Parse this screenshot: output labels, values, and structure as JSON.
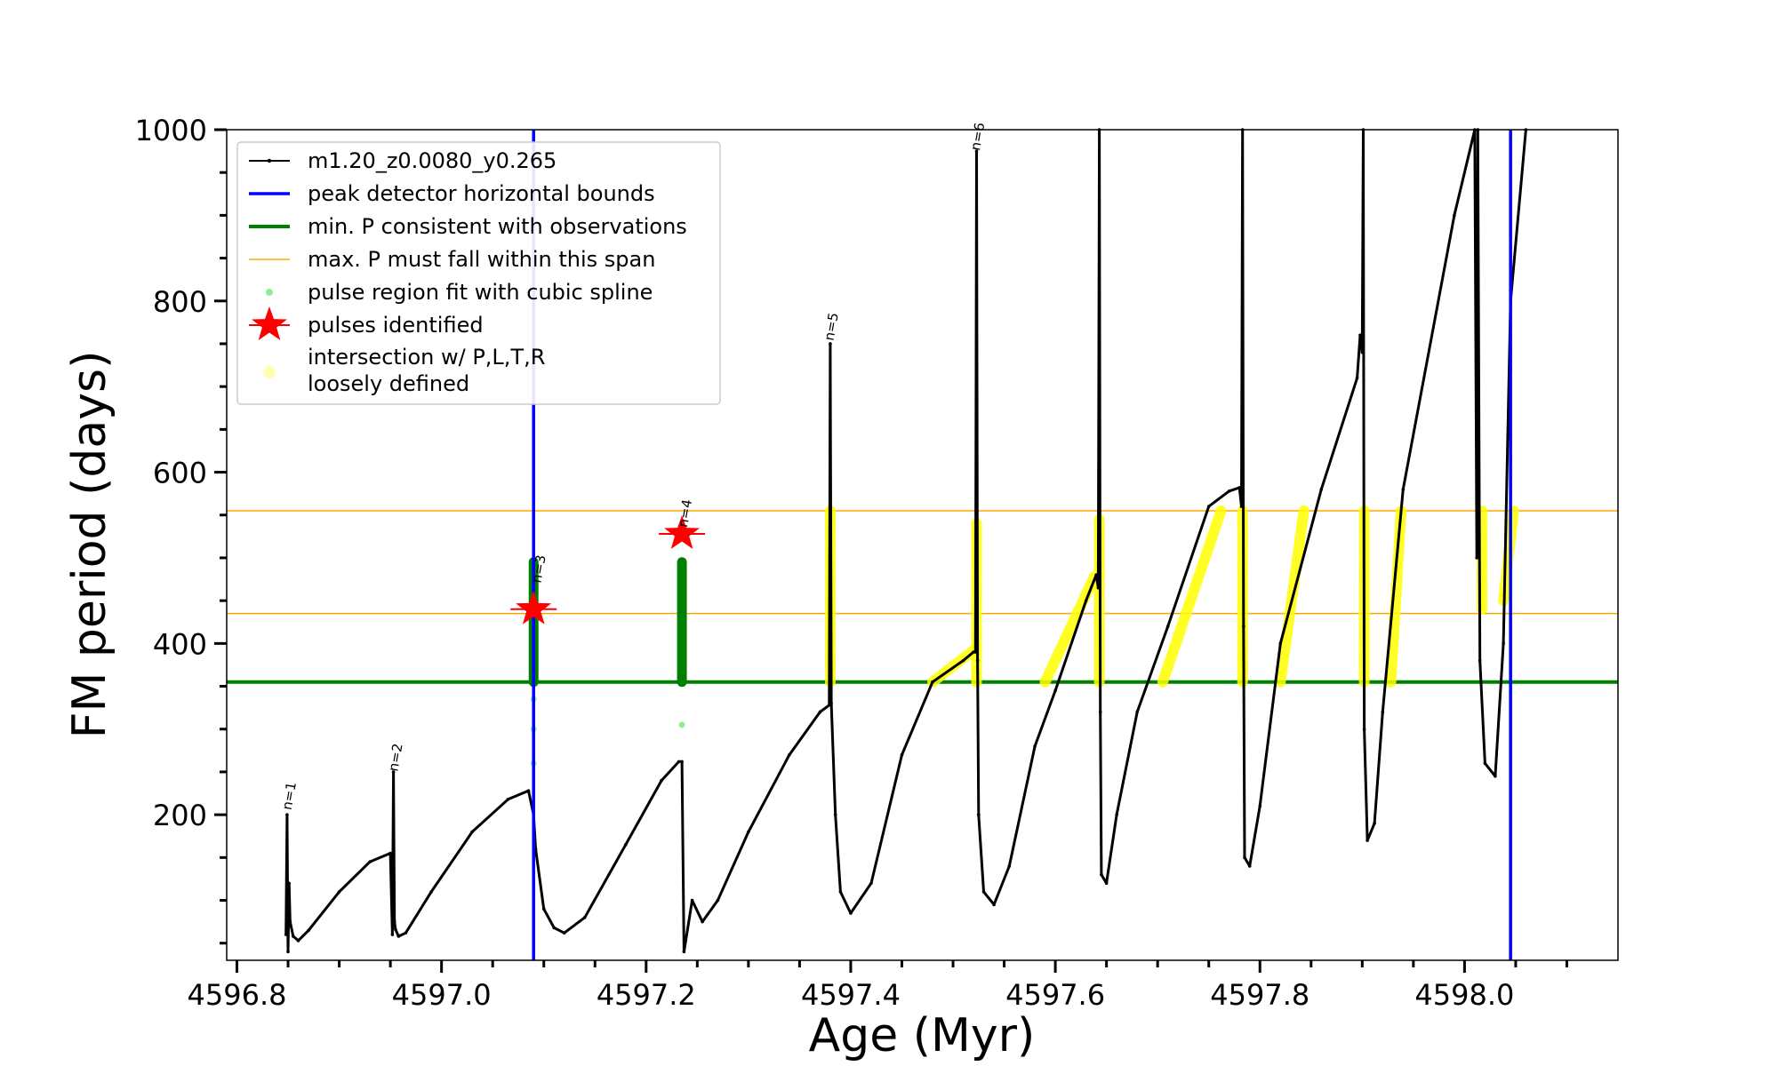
{
  "chart_data": {
    "type": "line",
    "title": "",
    "xlabel": "Age (Myr)",
    "ylabel": "FM period (days)",
    "xlim": [
      4596.79,
      4598.15
    ],
    "ylim": [
      30,
      1000
    ],
    "x_ticks": [
      4596.8,
      4597.0,
      4597.2,
      4597.4,
      4597.6,
      4597.8,
      4598.0
    ],
    "x_tick_labels": [
      "4596.8",
      "4597.0",
      "4597.2",
      "4597.4",
      "4597.6",
      "4597.8",
      "4598.0"
    ],
    "y_ticks": [
      200,
      400,
      600,
      800,
      1000
    ],
    "y_tick_labels": [
      "200",
      "400",
      "600",
      "800",
      "1000"
    ],
    "legend": {
      "position": "upper-left",
      "entries": [
        {
          "key": "model",
          "label": "m1.20_z0.0080_y0.265",
          "color": "#000000"
        },
        {
          "key": "peak",
          "label": "peak detector horizontal bounds",
          "color": "#0000ff"
        },
        {
          "key": "minp",
          "label": "min. P consistent with observations",
          "color": "#008000"
        },
        {
          "key": "maxp",
          "label": "max. P must fall within this span",
          "color": "#ffa500"
        },
        {
          "key": "spline",
          "label": "pulse region fit with cubic spline",
          "color": "#90ee90"
        },
        {
          "key": "pulses",
          "label": "pulses identified",
          "color": "#ff0000"
        },
        {
          "key": "inter",
          "label": [
            "intersection w/ P,L,T,R",
            "loosely defined"
          ],
          "color": "#ffff00"
        }
      ]
    },
    "vertical_lines": [
      {
        "name": "peak-bound-left",
        "x": 4597.09,
        "color": "#0000ff"
      },
      {
        "name": "peak-bound-right",
        "x": 4598.045,
        "color": "#0000ff"
      }
    ],
    "horizontal_lines": [
      {
        "name": "min-p-line",
        "y": 355,
        "color": "#008000",
        "width": 4
      },
      {
        "name": "max-p-upper",
        "y": 555,
        "color": "#ffa500",
        "width": 1.5
      },
      {
        "name": "max-p-lower",
        "y": 435,
        "color": "#ffa500",
        "width": 1.5
      }
    ],
    "pulses": [
      {
        "x": 4597.09,
        "y": 440
      },
      {
        "x": 4597.235,
        "y": 528
      }
    ],
    "annotations": [
      {
        "text": "n=1",
        "x": 4596.853,
        "y": 205
      },
      {
        "text": "n=2",
        "x": 4596.957,
        "y": 250
      },
      {
        "text": "n=3",
        "x": 4597.097,
        "y": 470
      },
      {
        "text": "n=4",
        "x": 4597.24,
        "y": 535
      },
      {
        "text": "n=5",
        "x": 4597.383,
        "y": 753
      },
      {
        "text": "n=6",
        "x": 4597.526,
        "y": 975
      }
    ],
    "series": [
      {
        "name": "m1.20_z0.0080_y0.265",
        "color": "#000000",
        "x": [
          4596.848,
          4596.849,
          4596.85,
          4596.851,
          4596.852,
          4596.855,
          4596.86,
          4596.87,
          4596.9,
          4596.93,
          4596.95,
          4596.952,
          4596.953,
          4596.954,
          4596.955,
          4596.958,
          4596.965,
          4596.99,
          4597.03,
          4597.065,
          4597.085,
          4597.09,
          4597.092,
          4597.1,
          4597.11,
          4597.12,
          4597.14,
          4597.18,
          4597.215,
          4597.232,
          4597.235,
          4597.237,
          4597.245,
          4597.255,
          4597.27,
          4597.3,
          4597.34,
          4597.37,
          4597.379,
          4597.38,
          4597.381,
          4597.385,
          4597.39,
          4597.4,
          4597.42,
          4597.45,
          4597.48,
          4597.51,
          4597.52,
          4597.522,
          4597.523,
          4597.524,
          4597.525,
          4597.53,
          4597.54,
          4597.555,
          4597.58,
          4597.6,
          4597.63,
          4597.64,
          4597.642,
          4597.643,
          4597.644,
          4597.645,
          4597.65,
          4597.66,
          4597.68,
          4597.71,
          4597.75,
          4597.77,
          4597.78,
          4597.782,
          4597.783,
          4597.784,
          4597.785,
          4597.79,
          4597.8,
          4597.82,
          4597.86,
          4597.895,
          4597.898,
          4597.9,
          4597.901,
          4597.902,
          4597.905,
          4597.912,
          4597.92,
          4597.94,
          4597.99,
          4598.01,
          4598.012,
          4598.013,
          4598.015,
          4598.02,
          4598.03,
          4598.038,
          4598.045,
          4598.06
        ],
        "values": [
          60,
          200,
          40,
          120,
          75,
          58,
          53,
          65,
          110,
          145,
          155,
          60,
          250,
          75,
          66,
          58,
          62,
          110,
          180,
          218,
          228,
          200,
          160,
          90,
          68,
          62,
          80,
          165,
          240,
          262,
          262,
          40,
          100,
          75,
          100,
          180,
          270,
          320,
          328,
          750,
          330,
          200,
          110,
          85,
          120,
          270,
          355,
          380,
          390,
          390,
          975,
          380,
          200,
          110,
          95,
          140,
          280,
          345,
          450,
          480,
          465,
          1000,
          320,
          130,
          120,
          200,
          320,
          420,
          560,
          578,
          582,
          560,
          1000,
          420,
          150,
          140,
          210,
          400,
          580,
          710,
          760,
          740,
          1000,
          300,
          170,
          190,
          320,
          580,
          900,
          1000,
          500,
          1000,
          380,
          260,
          245,
          400,
          800,
          1000
        ]
      }
    ],
    "spline_points": [
      {
        "x": 4597.09,
        "y": 260
      },
      {
        "x": 4597.09,
        "y": 300
      },
      {
        "x": 4597.09,
        "y": 335
      },
      {
        "x": 4597.235,
        "y": 305
      }
    ],
    "green_clusters": [
      {
        "x": 4597.09,
        "y_from": 355,
        "y_to": 495
      },
      {
        "x": 4597.235,
        "y_from": 355,
        "y_to": 495
      }
    ],
    "intersection_regions": [
      {
        "x_from": 4597.38,
        "x_to": 4597.38,
        "y_from": 355,
        "y_to": 555
      },
      {
        "x_from": 4597.48,
        "x_to": 4597.52,
        "y_from": 355,
        "y_to": 392
      },
      {
        "x_from": 4597.523,
        "x_to": 4597.523,
        "y_from": 355,
        "y_to": 540
      },
      {
        "x_from": 4597.59,
        "x_to": 4597.638,
        "y_from": 355,
        "y_to": 478
      },
      {
        "x_from": 4597.643,
        "x_to": 4597.643,
        "y_from": 355,
        "y_to": 545
      },
      {
        "x_from": 4597.705,
        "x_to": 4597.762,
        "y_from": 355,
        "y_to": 555
      },
      {
        "x_from": 4597.783,
        "x_to": 4597.783,
        "y_from": 355,
        "y_to": 555
      },
      {
        "x_from": 4597.82,
        "x_to": 4597.843,
        "y_from": 355,
        "y_to": 555
      },
      {
        "x_from": 4597.902,
        "x_to": 4597.902,
        "y_from": 355,
        "y_to": 555
      },
      {
        "x_from": 4597.928,
        "x_to": 4597.938,
        "y_from": 355,
        "y_to": 555
      },
      {
        "x_from": 4598.017,
        "x_to": 4598.017,
        "y_from": 440,
        "y_to": 555
      },
      {
        "x_from": 4598.038,
        "x_to": 4598.048,
        "y_from": 450,
        "y_to": 555
      }
    ]
  }
}
